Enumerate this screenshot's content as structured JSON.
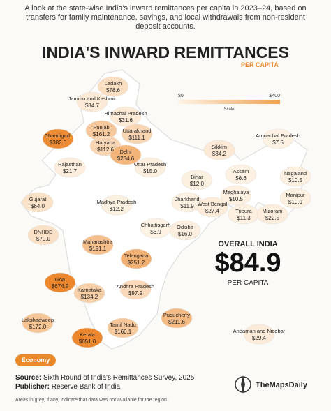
{
  "header": {
    "intro": "A look at the state-wise India's inward remittances per capita in 2023–24, based on transfers for family maintenance, savings, and local withdrawals from non-resident deposit accounts.",
    "title": "INDIA'S INWARD REMITTANCES",
    "subtitle": "PER CAPITA"
  },
  "scale": {
    "min": {
      "value": 0,
      "label": "$0"
    },
    "max": {
      "value": 400,
      "label": "$400"
    },
    "label": "Scale"
  },
  "regions": [
    {
      "name": "Ladakh",
      "value": 78.6,
      "label": "$78.6"
    },
    {
      "name": "Jammu and Kashmir",
      "value": 34.7,
      "label": "$34.7"
    },
    {
      "name": "Himachal Pradesh",
      "value": 31.6,
      "label": "$31.6"
    },
    {
      "name": "Punjab",
      "value": 161.2,
      "label": "$161.2"
    },
    {
      "name": "Uttarakhand",
      "value": 111.1,
      "label": "$111.1"
    },
    {
      "name": "Chandigarh",
      "value": 382.0,
      "label": "$382.0"
    },
    {
      "name": "Haryana",
      "value": 112.6,
      "label": "$112.6"
    },
    {
      "name": "Delhi",
      "value": 234.6,
      "label": "$234.6"
    },
    {
      "name": "Rajasthan",
      "value": 21.7,
      "label": "$21.7"
    },
    {
      "name": "Uttar Pradesh",
      "value": 15.0,
      "label": "$15.0"
    },
    {
      "name": "Sikkim",
      "value": 34.2,
      "label": "$34.2"
    },
    {
      "name": "Arunachal Pradesh",
      "value": 7.5,
      "label": "$7.5"
    },
    {
      "name": "Bihar",
      "value": 12.0,
      "label": "$12.0"
    },
    {
      "name": "Assam",
      "value": 6.6,
      "label": "$6.6"
    },
    {
      "name": "Nagaland",
      "value": 10.5,
      "label": "$10.5"
    },
    {
      "name": "Gujarat",
      "value": 64.0,
      "label": "$64.0"
    },
    {
      "name": "Madhya Pradesh",
      "value": 12.2,
      "label": "$12.2"
    },
    {
      "name": "Jharkhand",
      "value": 11.9,
      "label": "$11.9"
    },
    {
      "name": "West Bengal",
      "value": 27.4,
      "label": "$27.4"
    },
    {
      "name": "Meghalaya",
      "value": 10.5,
      "label": "$10.5"
    },
    {
      "name": "Manipur",
      "value": 10.9,
      "label": "$10.9"
    },
    {
      "name": "Tripura",
      "value": 11.3,
      "label": "$11.3"
    },
    {
      "name": "Mizoram",
      "value": 22.5,
      "label": "$22.5"
    },
    {
      "name": "Chhattisgarh",
      "value": 3.9,
      "label": "$3.9"
    },
    {
      "name": "Odisha",
      "value": 16.0,
      "label": "$16.0"
    },
    {
      "name": "DNHDD",
      "value": 70.0,
      "label": "$70.0"
    },
    {
      "name": "Maharashtra",
      "value": 191.1,
      "label": "$191.1"
    },
    {
      "name": "Telangana",
      "value": 251.2,
      "label": "$251.2"
    },
    {
      "name": "Goa",
      "value": 674.9,
      "label": "$674.9"
    },
    {
      "name": "Andhra Pradesh",
      "value": 97.9,
      "label": "$97.9"
    },
    {
      "name": "Karnataka",
      "value": 134.2,
      "label": "$134.2"
    },
    {
      "name": "Lakshadweep",
      "value": 172.0,
      "label": "$172.0"
    },
    {
      "name": "Puducherry",
      "value": 211.6,
      "label": "$211.6"
    },
    {
      "name": "Tamil Nadu",
      "value": 160.1,
      "label": "$160.1"
    },
    {
      "name": "Kerala",
      "value": 651.0,
      "label": "$651.0"
    },
    {
      "name": "Andaman and Nicobar",
      "value": 29.4,
      "label": "$29.4"
    }
  ],
  "overall": {
    "heading": "OVERALL INDIA",
    "value": "$84.9",
    "unit": "PER CAPITA"
  },
  "tag": "Economy",
  "footer": {
    "source_key": "Source:",
    "source": "Sixth Round of India's Remittances Survey, 2025",
    "publisher_key": "Publisher:",
    "publisher": "Reserve Bank of India",
    "brand": "TheMapsDaily",
    "note": "Areas in grey, if any, indicate that data was not available for the region."
  }
}
